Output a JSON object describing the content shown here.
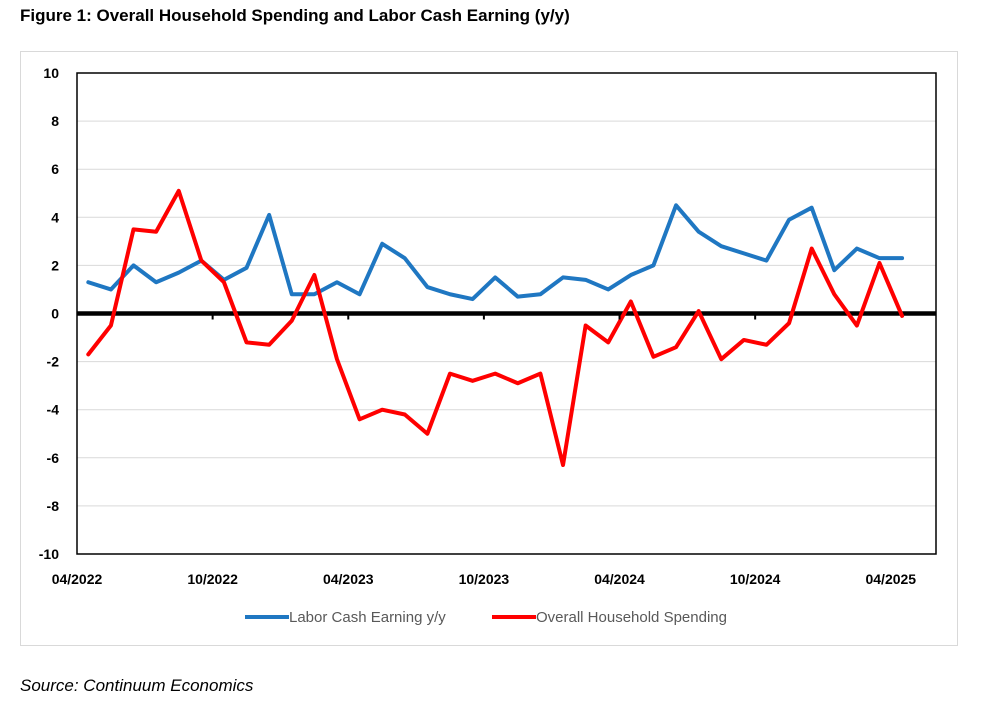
{
  "title": "Figure 1: Overall Household Spending and Labor Cash Earning (y/y)",
  "source": "Source: Continuum Economics",
  "chart_data": {
    "type": "line",
    "title": "Figure 1: Overall Household Spending and Labor Cash Earning (y/y)",
    "xlabel": "",
    "ylabel": "",
    "ylim": [
      -10,
      10
    ],
    "yticks": [
      10,
      8,
      6,
      4,
      2,
      0,
      -2,
      -4,
      -6,
      -8,
      -10
    ],
    "x_tick_labels": [
      "04/2022",
      "10/2022",
      "04/2023",
      "10/2023",
      "04/2024",
      "10/2024",
      "04/2025"
    ],
    "x": [
      "04/2022",
      "05/2022",
      "06/2022",
      "07/2022",
      "08/2022",
      "09/2022",
      "10/2022",
      "11/2022",
      "12/2022",
      "01/2023",
      "02/2023",
      "03/2023",
      "04/2023",
      "05/2023",
      "06/2023",
      "07/2023",
      "08/2023",
      "09/2023",
      "10/2023",
      "11/2023",
      "12/2023",
      "01/2024",
      "02/2024",
      "03/2024",
      "04/2024",
      "05/2024",
      "06/2024",
      "07/2024",
      "08/2024",
      "09/2024",
      "10/2024",
      "11/2024",
      "12/2024",
      "01/2025",
      "02/2025",
      "03/2025",
      "04/2025",
      "05/2025"
    ],
    "grid": true,
    "legend_position": "bottom",
    "series": [
      {
        "name": "Labor Cash Earning y/y",
        "color": "#1f77c2",
        "values": [
          1.3,
          1.0,
          2.0,
          1.3,
          1.7,
          2.2,
          1.4,
          1.9,
          4.1,
          0.8,
          0.8,
          1.3,
          0.8,
          2.9,
          2.3,
          1.1,
          0.8,
          0.6,
          1.5,
          0.7,
          0.8,
          1.5,
          1.4,
          1.0,
          1.6,
          2.0,
          4.5,
          3.4,
          2.8,
          2.5,
          2.2,
          3.9,
          4.4,
          1.8,
          2.7,
          2.3,
          2.3,
          null
        ]
      },
      {
        "name": "Overall Household Spending",
        "color": "#ff0000",
        "values": [
          -1.7,
          -0.5,
          3.5,
          3.4,
          5.1,
          2.2,
          1.3,
          -1.2,
          -1.3,
          -0.3,
          1.6,
          -1.9,
          -4.4,
          -4.0,
          -4.2,
          -5.0,
          -2.5,
          -2.8,
          -2.5,
          -2.9,
          -2.5,
          -6.3,
          -0.5,
          -1.2,
          0.5,
          -1.8,
          -1.4,
          0.1,
          -1.9,
          -1.1,
          -1.3,
          -0.4,
          2.7,
          0.8,
          -0.5,
          2.1,
          -0.1,
          null
        ]
      }
    ]
  },
  "zero_line_color": "#000000",
  "grid_color": "#d9d9d9"
}
